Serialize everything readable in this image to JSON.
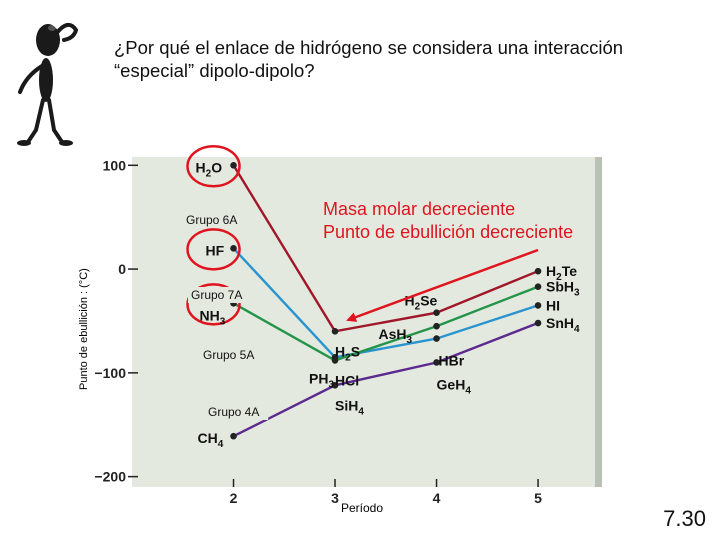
{
  "slide": {
    "question_line1": "¿Por qué el enlace de hidrógeno se considera una interacción",
    "question_line2": "“especial” dipolo-dipolo?",
    "slide_number": "7.30",
    "decoration_icon": "thinking-stick-figure-icon"
  },
  "colors": {
    "plot_bg": "#e3e9df",
    "grupo6": "#a0172a",
    "grupo7": "#2a94cf",
    "grupo5": "#23944a",
    "grupo4": "#5c2a8e",
    "highlight_circle": "#e0141e",
    "arrow": "#e0141e",
    "annotation_text": "#e0141e"
  },
  "chart_data": {
    "type": "line",
    "xlabel": "Período",
    "ylabel": "Punto de ebullición : (°C)",
    "x_ticks": [
      2,
      3,
      4,
      5
    ],
    "y_ticks": [
      100,
      0,
      -100,
      -200
    ],
    "xlim": [
      1.0,
      5.63
    ],
    "ylim": [
      -210,
      108
    ],
    "grid": false,
    "series": [
      {
        "name": "Grupo 6A",
        "color_key": "grupo6",
        "points": [
          {
            "x": 2,
            "y": 100,
            "label": "H2O",
            "base": "H",
            "sub": "2",
            "rest": "O"
          },
          {
            "x": 3,
            "y": -60,
            "label": "H2S",
            "base": "H",
            "sub": "2",
            "rest": "S"
          },
          {
            "x": 4,
            "y": -42,
            "label": "H2Se",
            "base": "H",
            "sub": "2",
            "rest": "Se"
          },
          {
            "x": 5,
            "y": -2,
            "label": "H2Te",
            "base": "H",
            "sub": "2",
            "rest": "Te"
          }
        ]
      },
      {
        "name": "Grupo 7A",
        "color_key": "grupo7",
        "points": [
          {
            "x": 2,
            "y": 20,
            "label": "HF",
            "base": "HF",
            "sub": "",
            "rest": ""
          },
          {
            "x": 3,
            "y": -85,
            "label": "HCl",
            "base": "HCl",
            "sub": "",
            "rest": ""
          },
          {
            "x": 4,
            "y": -67,
            "label": "HBr",
            "base": "HBr",
            "sub": "",
            "rest": ""
          },
          {
            "x": 5,
            "y": -35,
            "label": "HI",
            "base": "HI",
            "sub": "",
            "rest": ""
          }
        ]
      },
      {
        "name": "Grupo 5A",
        "color_key": "grupo5",
        "points": [
          {
            "x": 2,
            "y": -33,
            "label": "NH3",
            "base": "NH",
            "sub": "3",
            "rest": ""
          },
          {
            "x": 3,
            "y": -88,
            "label": "PH3",
            "base": "PH",
            "sub": "3",
            "rest": ""
          },
          {
            "x": 4,
            "y": -55,
            "label": "AsH3",
            "base": "AsH",
            "sub": "3",
            "rest": ""
          },
          {
            "x": 5,
            "y": -17,
            "label": "SbH3",
            "base": "SbH",
            "sub": "3",
            "rest": ""
          }
        ]
      },
      {
        "name": "Grupo 4A",
        "color_key": "grupo4",
        "points": [
          {
            "x": 2,
            "y": -161,
            "label": "CH4",
            "base": "CH",
            "sub": "4",
            "rest": ""
          },
          {
            "x": 3,
            "y": -112,
            "label": "SiH4",
            "base": "SiH",
            "sub": "4",
            "rest": ""
          },
          {
            "x": 4,
            "y": -90,
            "label": "GeH4",
            "base": "GeH",
            "sub": "4",
            "rest": ""
          },
          {
            "x": 5,
            "y": -52,
            "label": "SnH4",
            "base": "SnH",
            "sub": "4",
            "rest": ""
          }
        ]
      }
    ],
    "annotations": {
      "line1": "Masa molar decreciente",
      "line2": "Punto de ebullición decreciente",
      "circled": [
        "H2O",
        "HF",
        "NH3"
      ]
    }
  }
}
